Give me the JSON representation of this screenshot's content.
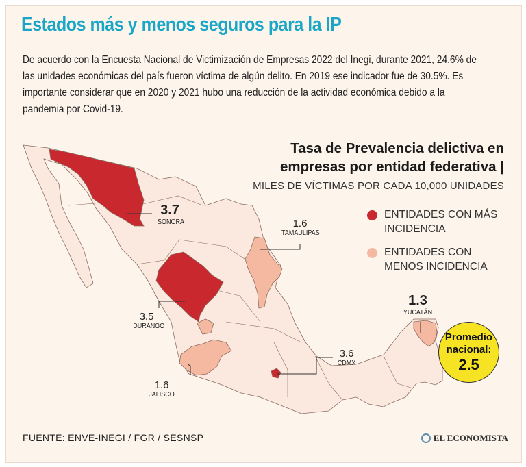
{
  "header": {
    "title": "Estados más y menos seguros para la IP",
    "intro": "De acuerdo con la Encuesta Nacional de Victimización de Empresas 2022 del Inegi, durante 2021, 24.6% de las unidades económicas del país fueron víctima de algún delito. En 2019 ese indicador fue de 30.5%. Es importante considerar que en 2020 y 2021 hubo una reducción de la actividad económica debido a la pandemia por Covid-19."
  },
  "map_title": {
    "line1": "Tasa de Prevalencia delictiva en",
    "line2": "empresas por entidad federativa |",
    "subtitle": "MILES DE VÍCTIMAS POR CADA 10,000 UNIDADES"
  },
  "legend": {
    "high": "ENTIDADES CON MÁS INCIDENCIA",
    "low": "ENTIDADES CON MENOS INCIDENCIA"
  },
  "states": [
    {
      "name": "SONORA",
      "value": "3.7",
      "category": "high"
    },
    {
      "name": "DURANGO",
      "value": "3.5",
      "category": "high"
    },
    {
      "name": "CDMX",
      "value": "3.6",
      "category": "high"
    },
    {
      "name": "TAMAULIPAS",
      "value": "1.6",
      "category": "low"
    },
    {
      "name": "JALISCO",
      "value": "1.6",
      "category": "low"
    },
    {
      "name": "YUCATÁN",
      "value": "1.3",
      "category": "low"
    }
  ],
  "national_average": {
    "label": "Promedio nacional:",
    "value": "2.5"
  },
  "footer": {
    "source": "FUENTE: ENVE-INEGI / FGR / SESNSP",
    "brand": "EL ECONOMISTA"
  },
  "colors": {
    "high": "#c8282e",
    "low": "#f5b9a2",
    "base": "#fbe9df",
    "border": "#8a6b5f",
    "title": "#1aa7c7",
    "average": "#f6e324"
  }
}
